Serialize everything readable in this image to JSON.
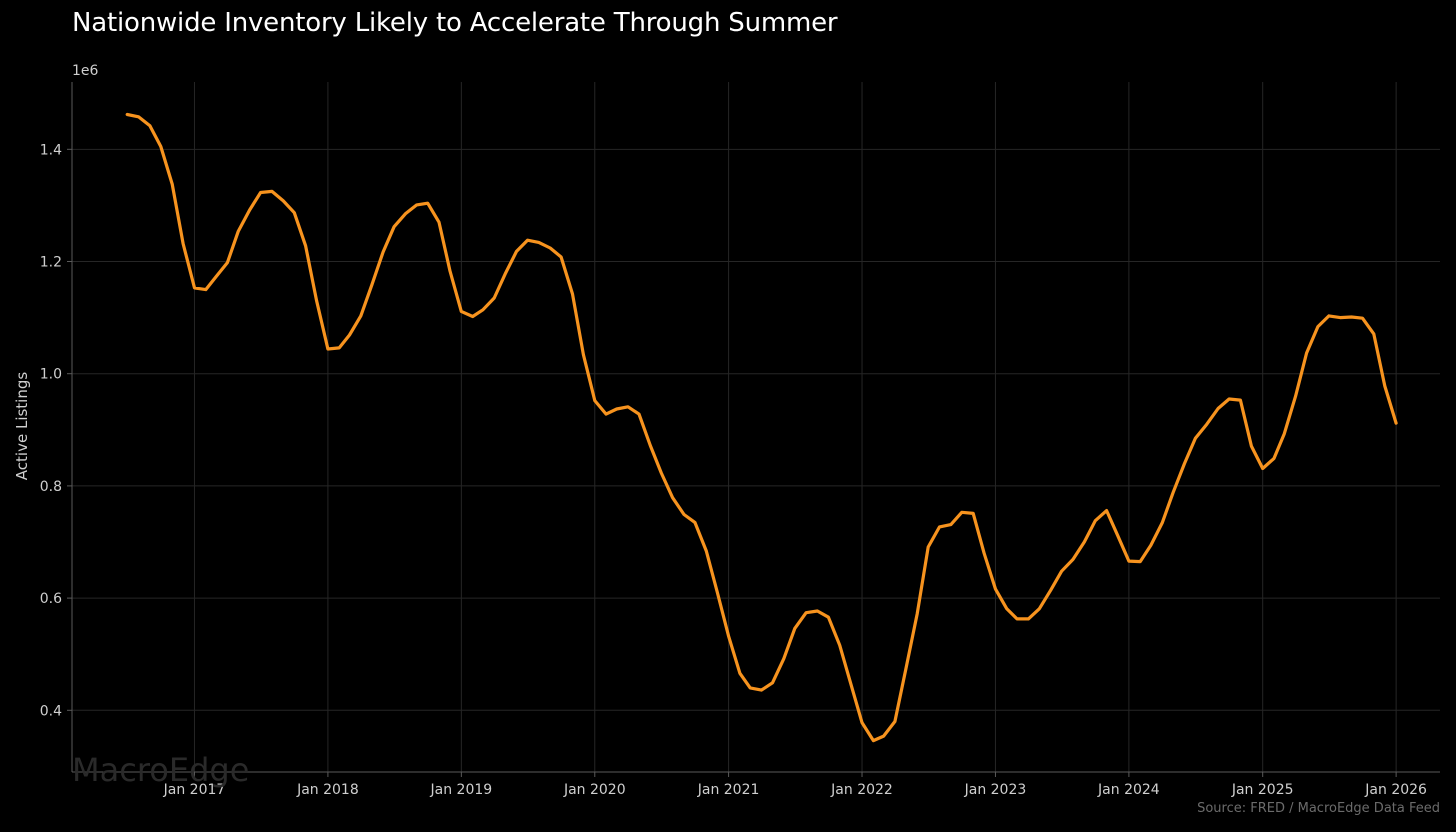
{
  "chart_data": {
    "type": "line",
    "title": "Nationwide Inventory Likely to Accelerate Through Summer",
    "ylabel": "Active Listings",
    "xlabel": "",
    "y_offset_label": "1e6",
    "ylim": [
      0.29,
      1.52
    ],
    "xlim": [
      "2016-02-01",
      "2026-05-01"
    ],
    "y_ticks": [
      0.4,
      0.6,
      0.8,
      1.0,
      1.2,
      1.4
    ],
    "y_tick_labels": [
      "0.4",
      "0.6",
      "0.8",
      "1.0",
      "1.2",
      "1.4"
    ],
    "x_ticks": [
      "2017-01-01",
      "2018-01-01",
      "2019-01-01",
      "2020-01-01",
      "2021-01-01",
      "2022-01-01",
      "2023-01-01",
      "2024-01-01",
      "2025-01-01",
      "2026-01-01"
    ],
    "x_tick_labels": [
      "Jan 2017",
      "Jan 2018",
      "Jan 2019",
      "Jan 2020",
      "Jan 2021",
      "Jan 2022",
      "Jan 2023",
      "Jan 2024",
      "Jan 2025",
      "Jan 2026"
    ],
    "grid": true,
    "series": [
      {
        "color": "#f7931e",
        "x": [
          "2016-07-01",
          "2016-08-01",
          "2016-09-01",
          "2016-10-01",
          "2016-11-01",
          "2016-12-01",
          "2017-01-01",
          "2017-02-01",
          "2017-03-01",
          "2017-04-01",
          "2017-05-01",
          "2017-06-01",
          "2017-07-01",
          "2017-08-01",
          "2017-09-01",
          "2017-10-01",
          "2017-11-01",
          "2017-12-01",
          "2018-01-01",
          "2018-02-01",
          "2018-03-01",
          "2018-04-01",
          "2018-05-01",
          "2018-06-01",
          "2018-07-01",
          "2018-08-01",
          "2018-09-01",
          "2018-10-01",
          "2018-11-01",
          "2018-12-01",
          "2019-01-01",
          "2019-02-01",
          "2019-03-01",
          "2019-04-01",
          "2019-05-01",
          "2019-06-01",
          "2019-07-01",
          "2019-08-01",
          "2019-09-01",
          "2019-10-01",
          "2019-11-01",
          "2019-12-01",
          "2020-01-01",
          "2020-02-01",
          "2020-03-01",
          "2020-04-01",
          "2020-05-01",
          "2020-06-01",
          "2020-07-01",
          "2020-08-01",
          "2020-09-01",
          "2020-10-01",
          "2020-11-01",
          "2020-12-01",
          "2021-01-01",
          "2021-02-01",
          "2021-03-01",
          "2021-04-01",
          "2021-05-01",
          "2021-06-01",
          "2021-07-01",
          "2021-08-01",
          "2021-09-01",
          "2021-10-01",
          "2021-11-01",
          "2021-12-01",
          "2022-01-01",
          "2022-02-01",
          "2022-03-01",
          "2022-04-01",
          "2022-05-01",
          "2022-06-01",
          "2022-07-01",
          "2022-08-01",
          "2022-09-01",
          "2022-10-01",
          "2022-11-01",
          "2022-12-01",
          "2023-01-01",
          "2023-02-01",
          "2023-03-01",
          "2023-04-01",
          "2023-05-01",
          "2023-06-01",
          "2023-07-01",
          "2023-08-01",
          "2023-09-01",
          "2023-10-01",
          "2023-11-01",
          "2023-12-01",
          "2024-01-01",
          "2024-02-01",
          "2024-03-01",
          "2024-04-01",
          "2024-05-01",
          "2024-06-01",
          "2024-07-01",
          "2024-08-01",
          "2024-09-01",
          "2024-10-01",
          "2024-11-01",
          "2024-12-01",
          "2025-01-01",
          "2025-02-01",
          "2025-03-01",
          "2025-04-01",
          "2025-05-01",
          "2025-06-01",
          "2025-07-01",
          "2025-08-01",
          "2025-09-01",
          "2025-10-01",
          "2025-11-01",
          "2025-12-01",
          "2026-01-01"
        ],
        "y": [
          1.462,
          1.458,
          1.442,
          1.405,
          1.338,
          1.232,
          1.153,
          1.15,
          1.173,
          1.198,
          1.254,
          1.292,
          1.323,
          1.325,
          1.308,
          1.287,
          1.228,
          1.13,
          1.044,
          1.046,
          1.069,
          1.103,
          1.158,
          1.217,
          1.262,
          1.285,
          1.301,
          1.304,
          1.27,
          1.183,
          1.111,
          1.102,
          1.114,
          1.135,
          1.178,
          1.218,
          1.238,
          1.234,
          1.224,
          1.208,
          1.142,
          1.034,
          0.952,
          0.928,
          0.937,
          0.941,
          0.928,
          0.872,
          0.823,
          0.779,
          0.749,
          0.735,
          0.684,
          0.611,
          0.532,
          0.466,
          0.44,
          0.436,
          0.449,
          0.492,
          0.546,
          0.574,
          0.577,
          0.566,
          0.516,
          0.448,
          0.378,
          0.346,
          0.354,
          0.38,
          0.474,
          0.572,
          0.691,
          0.727,
          0.731,
          0.753,
          0.751,
          0.68,
          0.616,
          0.581,
          0.563,
          0.563,
          0.581,
          0.614,
          0.648,
          0.669,
          0.7,
          0.738,
          0.756,
          0.712,
          0.666,
          0.665,
          0.694,
          0.734,
          0.788,
          0.84,
          0.885,
          0.91,
          0.938,
          0.955,
          0.953,
          0.871,
          0.831,
          0.849,
          0.893,
          0.96,
          1.037,
          1.084,
          1.103,
          1.1,
          1.101,
          1.099,
          1.071,
          0.978,
          0.912
        ]
      }
    ]
  },
  "watermark": "MacroEdge",
  "source_note": "Source: FRED / MacroEdge Data Feed"
}
